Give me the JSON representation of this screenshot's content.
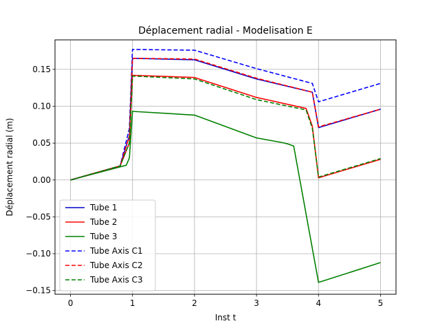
{
  "chart_data": {
    "type": "line",
    "title": "Déplacement radial - Modelisation E",
    "xlabel": "Inst t",
    "ylabel": "Déplacement radial (m)",
    "xlim": [
      -0.25,
      5.25
    ],
    "ylim": [
      -0.155,
      0.19
    ],
    "xticks": [
      0,
      1,
      2,
      3,
      4,
      5
    ],
    "xtick_labels": [
      "0",
      "1",
      "2",
      "3",
      "4",
      "5"
    ],
    "yticks": [
      -0.15,
      -0.1,
      -0.05,
      0.0,
      0.05,
      0.1,
      0.15
    ],
    "ytick_labels": [
      "−0.15",
      "−0.10",
      "−0.05",
      "0.00",
      "0.05",
      "0.10",
      "0.15"
    ],
    "grid": true,
    "legend_position": "lower-left",
    "series": [
      {
        "name": "Tube 1",
        "color": "#0000cc",
        "dash": "solid",
        "x": [
          0,
          0.8,
          0.95,
          1,
          2,
          3,
          3.9,
          4,
          5
        ],
        "y": [
          0,
          0.019,
          0.06,
          0.165,
          0.163,
          0.137,
          0.119,
          0.071,
          0.096
        ]
      },
      {
        "name": "Tube 2",
        "color": "#ff0000",
        "dash": "solid",
        "x": [
          0,
          0.8,
          0.95,
          1,
          2,
          3,
          3.8,
          3.9,
          4,
          5
        ],
        "y": [
          0,
          0.019,
          0.05,
          0.142,
          0.139,
          0.112,
          0.097,
          0.073,
          0.003,
          0.028
        ]
      },
      {
        "name": "Tube 3",
        "color": "#008000",
        "dash": "solid",
        "x": [
          0,
          0.9,
          0.95,
          1,
          2,
          3,
          3.4,
          3.5,
          3.6,
          4,
          5
        ],
        "y": [
          0,
          0.02,
          0.03,
          0.093,
          0.088,
          0.057,
          0.051,
          0.049,
          0.046,
          -0.139,
          -0.112
        ]
      },
      {
        "name": "Tube Axis C1",
        "color": "#0000ff",
        "dash": "dashed",
        "x": [
          0,
          0.8,
          0.95,
          1,
          2,
          3,
          3.9,
          4,
          5
        ],
        "y": [
          0,
          0.019,
          0.07,
          0.177,
          0.176,
          0.151,
          0.131,
          0.106,
          0.131
        ]
      },
      {
        "name": "Tube Axis C2",
        "color": "#ff0000",
        "dash": "dashed",
        "x": [
          0,
          0.8,
          0.95,
          1,
          2,
          3,
          3.9,
          4,
          5
        ],
        "y": [
          0,
          0.019,
          0.06,
          0.165,
          0.164,
          0.138,
          0.119,
          0.072,
          0.096
        ]
      },
      {
        "name": "Tube Axis C3",
        "color": "#008000",
        "dash": "dashed",
        "x": [
          0,
          0.8,
          0.95,
          1,
          2,
          3,
          3.8,
          3.9,
          4,
          5
        ],
        "y": [
          0,
          0.019,
          0.05,
          0.141,
          0.137,
          0.109,
          0.095,
          0.07,
          0.004,
          0.029
        ]
      }
    ]
  }
}
